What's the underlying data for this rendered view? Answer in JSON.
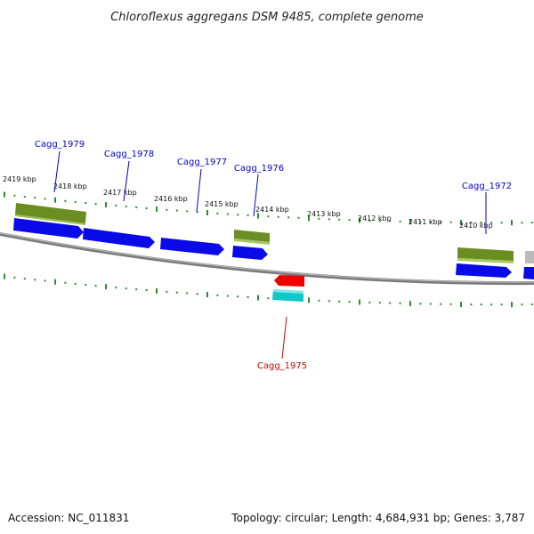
{
  "title": "Chloroflexus aggregans DSM 9485, complete genome",
  "footer": {
    "accession": "Accession: NC_011831",
    "summary": "Topology: circular; Length: 4,684,931 bp; Genes: 3,787"
  },
  "colors": {
    "backbone": "#888888",
    "forward_cds": "#0a0ae8",
    "reverse_cds": "#10c8c8",
    "gene_feature": "#6b8e23",
    "highlight": "#ee0000",
    "tick": "#2e8b2e",
    "label_blue": "#0000cc",
    "label_red": "#cc0000"
  },
  "ruler_labels": [
    "2419 kbp",
    "2418 kbp",
    "2417 kbp",
    "2416 kbp",
    "2415 kbp",
    "2414 kbp",
    "2413 kbp",
    "2412 kbp",
    "2411 kbp",
    "2410 kbp"
  ],
  "gene_labels": [
    "Cagg_1979",
    "Cagg_1978",
    "Cagg_1977",
    "Cagg_1976",
    "Cagg_1972",
    "Cagg_1975"
  ]
}
